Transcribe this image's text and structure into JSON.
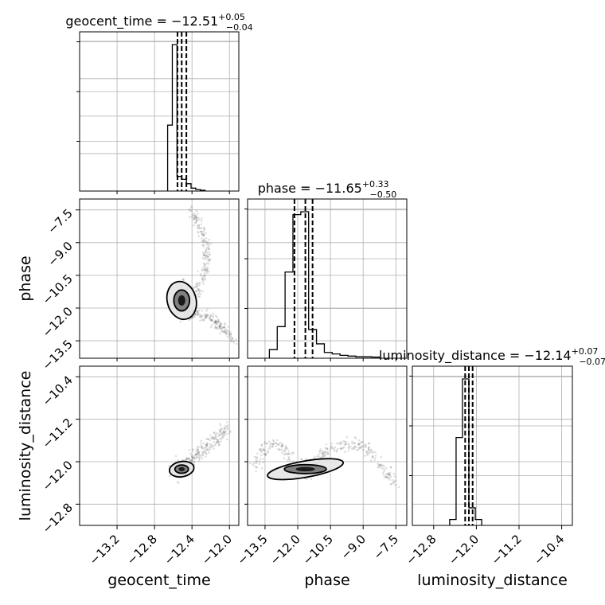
{
  "chart_data": {
    "type": "corner",
    "parameters": [
      {
        "name": "geocent_time",
        "median": -12.51,
        "plus": 0.05,
        "minus": 0.04,
        "title_main": "geocent_time = −12.51",
        "title_sup": "+0.05",
        "title_sub": "−0.04",
        "axis_label": "geocent_time",
        "range": [
          -13.6,
          -11.9
        ],
        "ticks": [
          -13.2,
          -12.8,
          -12.4,
          -12.0
        ],
        "tick_labels": [
          "−13.2",
          "−12.8",
          "−12.4",
          "−12.0"
        ],
        "quantiles": [
          -12.555,
          -12.51,
          -12.46
        ]
      },
      {
        "name": "phase",
        "median": -11.65,
        "plus": 0.33,
        "minus": 0.5,
        "title_main": "phase = −11.65",
        "title_sup": "+0.33",
        "title_sub": "−0.50",
        "axis_label": "phase",
        "range": [
          -14.3,
          -7.0
        ],
        "ticks": [
          -13.5,
          -12.0,
          -10.5,
          -9.0,
          -7.5
        ],
        "tick_labels": [
          "−13.5",
          "−12.0",
          "−10.5",
          "−9.0",
          "−7.5"
        ],
        "quantiles": [
          -12.15,
          -11.65,
          -11.32
        ]
      },
      {
        "name": "luminosity_distance",
        "median": -12.14,
        "plus": 0.07,
        "minus": 0.07,
        "title_main": "luminosity_distance = −12.14",
        "title_sup": "+0.07",
        "title_sub": "−0.07",
        "axis_label": "luminosity_distance",
        "range": [
          -13.2,
          -10.2
        ],
        "ticks": [
          -12.8,
          -12.0,
          -11.2,
          -10.4
        ],
        "tick_labels": [
          "−12.8",
          "−12.0",
          "−11.2",
          "−10.4"
        ],
        "quantiles": [
          -12.21,
          -12.14,
          -12.07
        ]
      }
    ],
    "histograms": [
      {
        "param": "geocent_time",
        "bin_start": -12.66,
        "bin_width": 0.05,
        "counts": [
          0.45,
          1.0,
          0.1,
          0.08,
          0.05,
          0.02,
          0.01,
          0.005
        ]
      },
      {
        "param": "phase",
        "bin_start": -13.3,
        "bin_width": 0.36,
        "counts": [
          0.06,
          0.22,
          0.6,
          1.0,
          1.02,
          0.2,
          0.1,
          0.04,
          0.03,
          0.02,
          0.015,
          0.01,
          0.01,
          0.008
        ]
      },
      {
        "param": "luminosity_distance",
        "bin_start": -12.5,
        "bin_width": 0.12,
        "counts": [
          0.04,
          0.6,
          1.0,
          0.12,
          0.04
        ]
      }
    ],
    "scatter_panels": [
      {
        "x": "geocent_time",
        "y": "phase",
        "samples": 500
      },
      {
        "x": "geocent_time",
        "y": "luminosity_distance",
        "samples": 350
      },
      {
        "x": "phase",
        "y": "luminosity_distance",
        "samples": 450
      }
    ],
    "grid": true
  }
}
